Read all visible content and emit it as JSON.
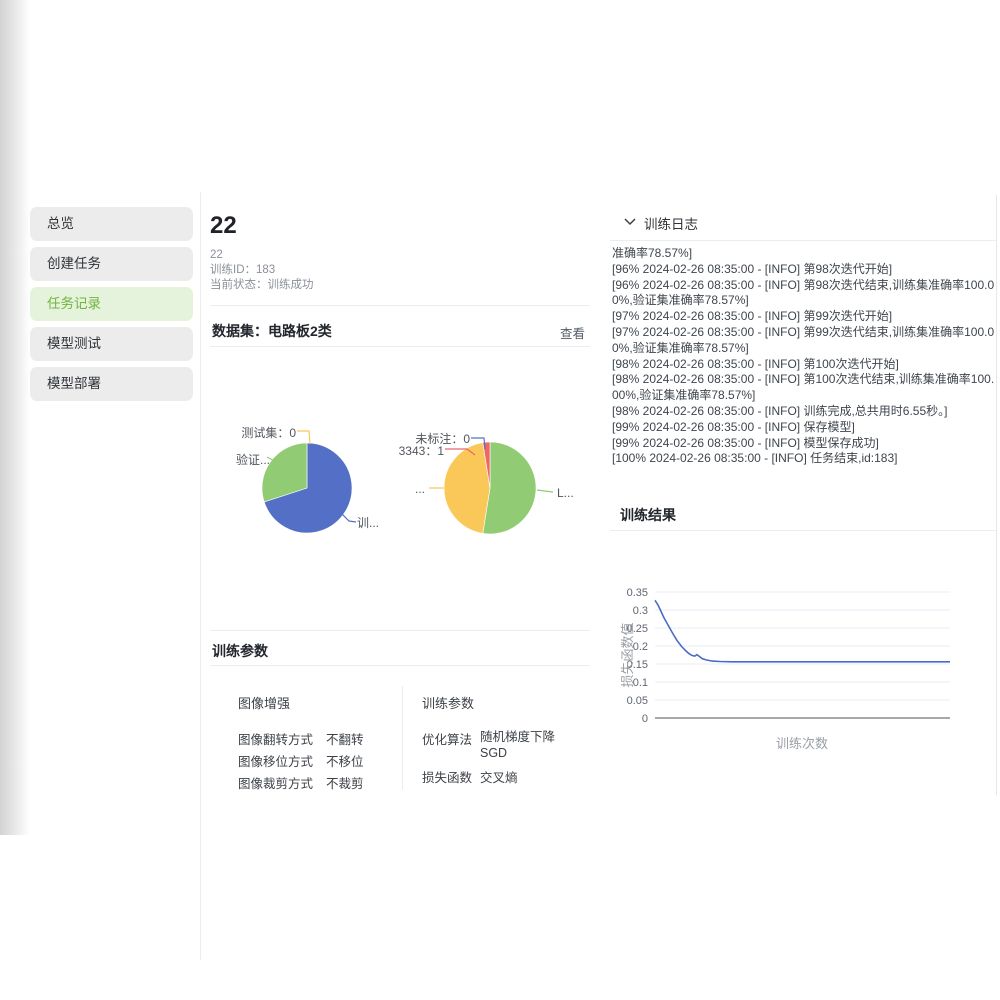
{
  "colors": {
    "blue": "#5470c6",
    "green": "#91cc75",
    "yellow": "#fac858",
    "red": "#ee6666",
    "line": "#4a6cc6",
    "accent_text": "#73b43e",
    "accent_bg": "#e5f2dc"
  },
  "sidebar": {
    "items": [
      {
        "label": "总览",
        "active": false
      },
      {
        "label": "创建任务",
        "active": false
      },
      {
        "label": "任务记录",
        "active": true
      },
      {
        "label": "模型测试",
        "active": false
      },
      {
        "label": "模型部署",
        "active": false
      }
    ]
  },
  "task": {
    "title": "22",
    "name": "22",
    "train_id": "训练ID：183",
    "status": "当前状态：训练成功"
  },
  "dataset": {
    "header": "数据集：电路板2类",
    "view_label": "查看"
  },
  "chart_data": [
    {
      "type": "pie",
      "name": "dataset-split-pie",
      "slices": [
        {
          "label": "训练集",
          "display": "训...",
          "value": 70,
          "color": "#5470c6"
        },
        {
          "label": "验证集",
          "display": "验证...",
          "value": 30,
          "color": "#91cc75"
        },
        {
          "label": "测试集",
          "display": "测试集：0",
          "value": 0,
          "color": "#fac858"
        }
      ]
    },
    {
      "type": "pie",
      "name": "dataset-category-pie",
      "slices": [
        {
          "label": "L...",
          "display": "L...",
          "value": 52.5,
          "color": "#91cc75"
        },
        {
          "label": "...",
          "display": "...",
          "value": 45,
          "color": "#fac858"
        },
        {
          "label": "3343",
          "display": "3343：1",
          "value": 2.5,
          "color": "#ee6666"
        },
        {
          "label": "未标注",
          "display": "未标注：0",
          "value": 0,
          "color": "#5470c6"
        }
      ]
    },
    {
      "type": "line",
      "name": "loss-curve",
      "xlabel": "训练次数",
      "ylabel": "损失函数值",
      "xlim": [
        0,
        100
      ],
      "ylim": [
        0,
        0.35
      ],
      "yticks": [
        0,
        0.05,
        0.1,
        0.15,
        0.2,
        0.25,
        0.3,
        0.35
      ],
      "points": [
        [
          0,
          0.327
        ],
        [
          1,
          0.314
        ],
        [
          2,
          0.297
        ],
        [
          3,
          0.279
        ],
        [
          4.5,
          0.257
        ],
        [
          6,
          0.235
        ],
        [
          7.5,
          0.215
        ],
        [
          9,
          0.199
        ],
        [
          10.5,
          0.186
        ],
        [
          11.5,
          0.179
        ],
        [
          12.5,
          0.174
        ],
        [
          13.5,
          0.172
        ],
        [
          14.2,
          0.176
        ],
        [
          15,
          0.171
        ],
        [
          16,
          0.165
        ],
        [
          17.5,
          0.161
        ],
        [
          19.5,
          0.158
        ],
        [
          22,
          0.157
        ],
        [
          26,
          0.156
        ],
        [
          35,
          0.156
        ],
        [
          50,
          0.156
        ],
        [
          65,
          0.156
        ],
        [
          80,
          0.156
        ],
        [
          100,
          0.156
        ]
      ]
    }
  ],
  "params": {
    "header": "训练参数",
    "aug": {
      "title": "图像增强",
      "rows": [
        {
          "k": "图像翻转方式",
          "v": "不翻转"
        },
        {
          "k": "图像移位方式",
          "v": "不移位"
        },
        {
          "k": "图像裁剪方式",
          "v": "不裁剪"
        }
      ]
    },
    "train": {
      "title": "训练参数",
      "rows": [
        {
          "k": "优化算法",
          "v": "随机梯度下降 SGD"
        },
        {
          "k": "损失函数",
          "v": "交叉熵"
        }
      ]
    }
  },
  "log": {
    "header": "训练日志",
    "lines": [
      "准确率78.57%]",
      "[96% 2024-02-26 08:35:00 - [INFO] 第98次迭代开始]",
      "[96% 2024-02-26 08:35:00 - [INFO] 第98次迭代结束,训练集准确率100.00%,验证集准确率78.57%]",
      "[97% 2024-02-26 08:35:00 - [INFO] 第99次迭代开始]",
      "[97% 2024-02-26 08:35:00 - [INFO] 第99次迭代结束,训练集准确率100.00%,验证集准确率78.57%]",
      "[98% 2024-02-26 08:35:00 - [INFO] 第100次迭代开始]",
      "[98% 2024-02-26 08:35:00 - [INFO] 第100次迭代结束,训练集准确率100.00%,验证集准确率78.57%]",
      "[98% 2024-02-26 08:35:00 - [INFO] 训练完成,总共用时6.55秒。]",
      "[99% 2024-02-26 08:35:00 - [INFO] 保存模型]",
      "[99% 2024-02-26 08:35:00 - [INFO] 模型保存成功]",
      "[100% 2024-02-26 08:35:00 - [INFO] 任务结束,id:183]"
    ]
  },
  "result": {
    "header": "训练结果"
  }
}
